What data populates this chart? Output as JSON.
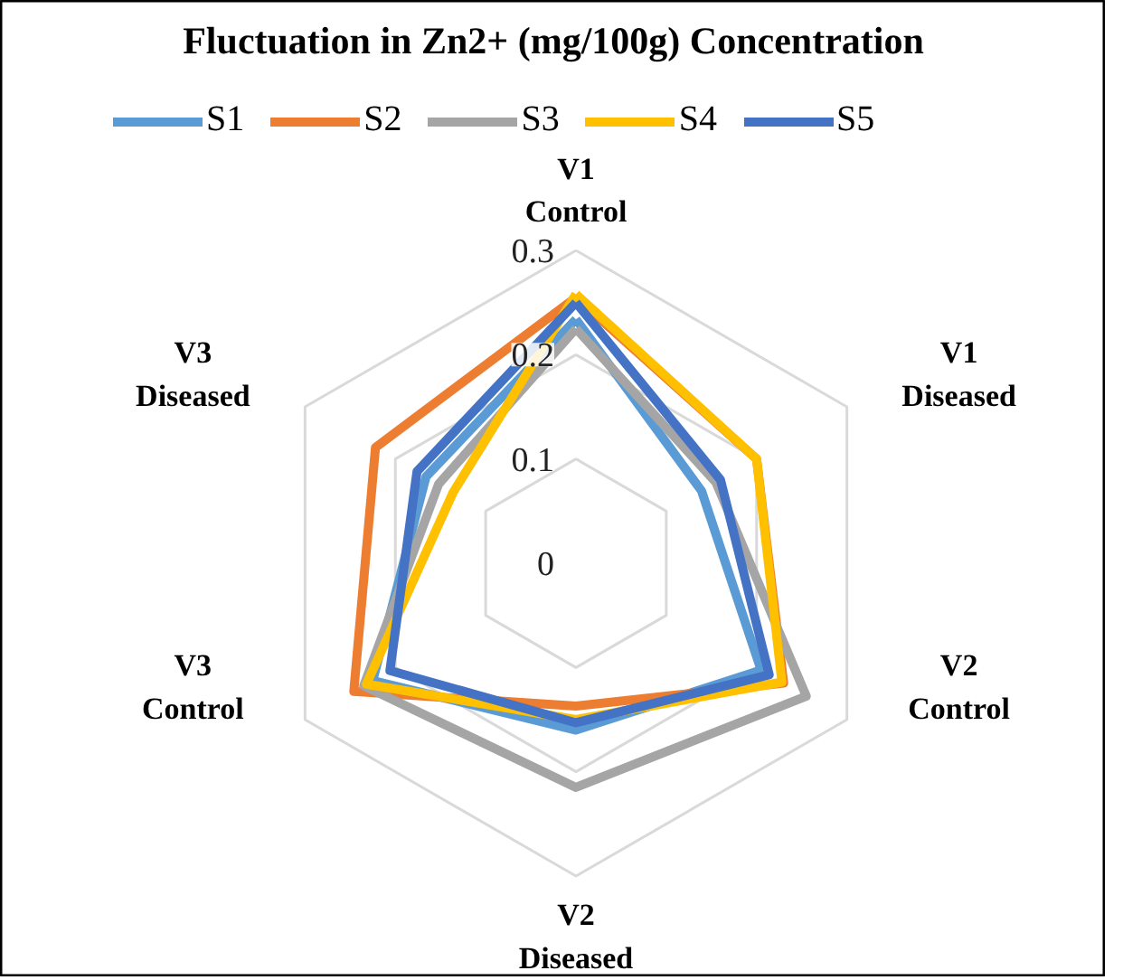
{
  "chart_data": {
    "type": "radar",
    "title": "Fluctuation in Zn2+ (mg/100g) Concentration",
    "categories": [
      "V1 Control",
      "V1 Diseased",
      "V2 Control",
      "V2 Diseased",
      "V3 Control",
      "V3 Diseased"
    ],
    "ylim": [
      0,
      0.3
    ],
    "yticks": [
      0,
      0.1,
      0.2,
      0.3
    ],
    "grid": true,
    "legend": "top",
    "series": [
      {
        "name": "S1",
        "color": "#5b9bd5",
        "values": [
          0.234,
          0.139,
          0.205,
          0.16,
          0.225,
          0.166
        ]
      },
      {
        "name": "S2",
        "color": "#ed7d31",
        "values": [
          0.255,
          0.2,
          0.23,
          0.137,
          0.246,
          0.222
        ]
      },
      {
        "name": "S3",
        "color": "#a5a5a5",
        "values": [
          0.225,
          0.155,
          0.255,
          0.215,
          0.235,
          0.152
        ]
      },
      {
        "name": "S4",
        "color": "#ffc000",
        "values": [
          0.258,
          0.2,
          0.228,
          0.15,
          0.232,
          0.136
        ]
      },
      {
        "name": "S5",
        "color": "#4472c4",
        "values": [
          0.25,
          0.16,
          0.214,
          0.153,
          0.206,
          0.176
        ]
      }
    ]
  }
}
